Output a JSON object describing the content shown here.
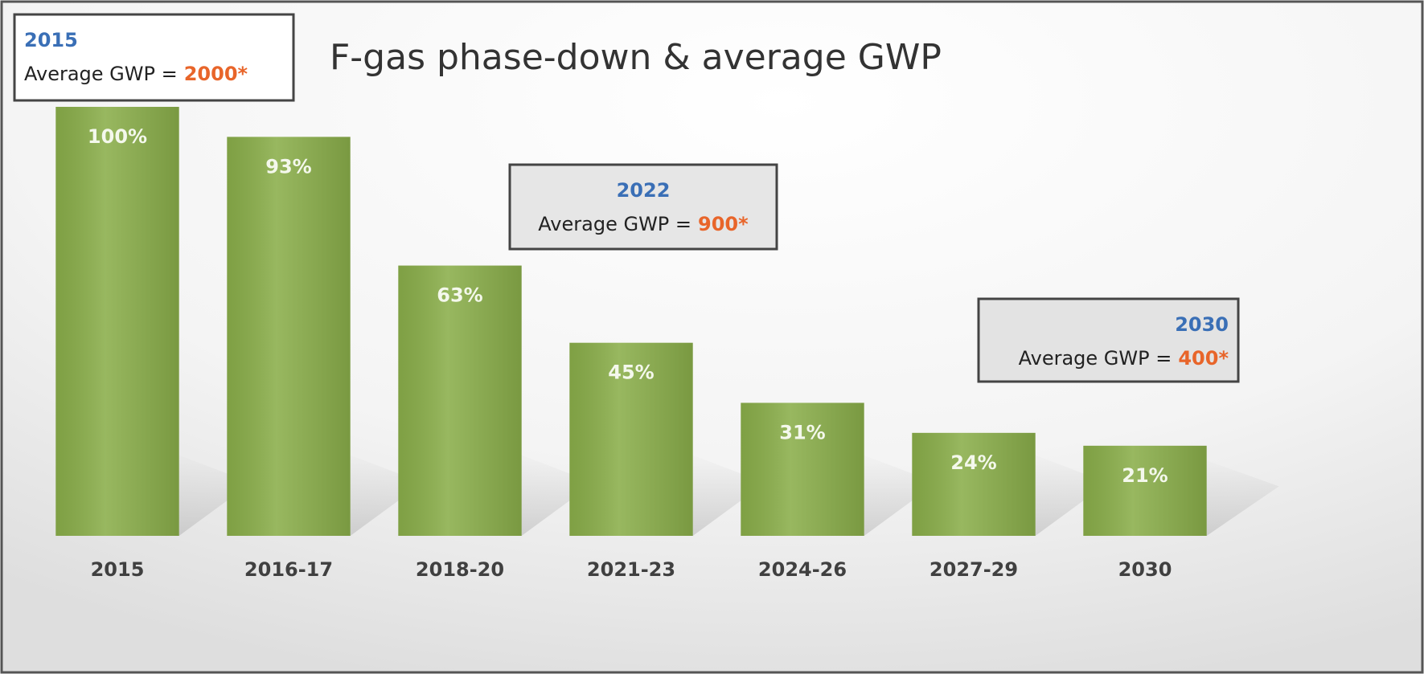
{
  "chart_data": {
    "type": "bar",
    "title": "F-gas phase-down & average GWP",
    "categories": [
      "2015",
      "2016-17",
      "2018-20",
      "2021-23",
      "2024-26",
      "2027-29",
      "2030"
    ],
    "values": [
      100,
      93,
      63,
      45,
      31,
      24,
      21
    ],
    "value_labels": [
      "100%",
      "93%",
      "63%",
      "45%",
      "31%",
      "24%",
      "21%"
    ],
    "color": "#8aae4a",
    "ylim": [
      0,
      100
    ],
    "annotations": [
      {
        "year": "2015",
        "text": "Average GWP =",
        "value": "2000*"
      },
      {
        "year": "2022",
        "text": "Average GWP =",
        "value": "900*"
      },
      {
        "year": "2030",
        "text": "Average GWP =",
        "value": "400*"
      }
    ]
  }
}
